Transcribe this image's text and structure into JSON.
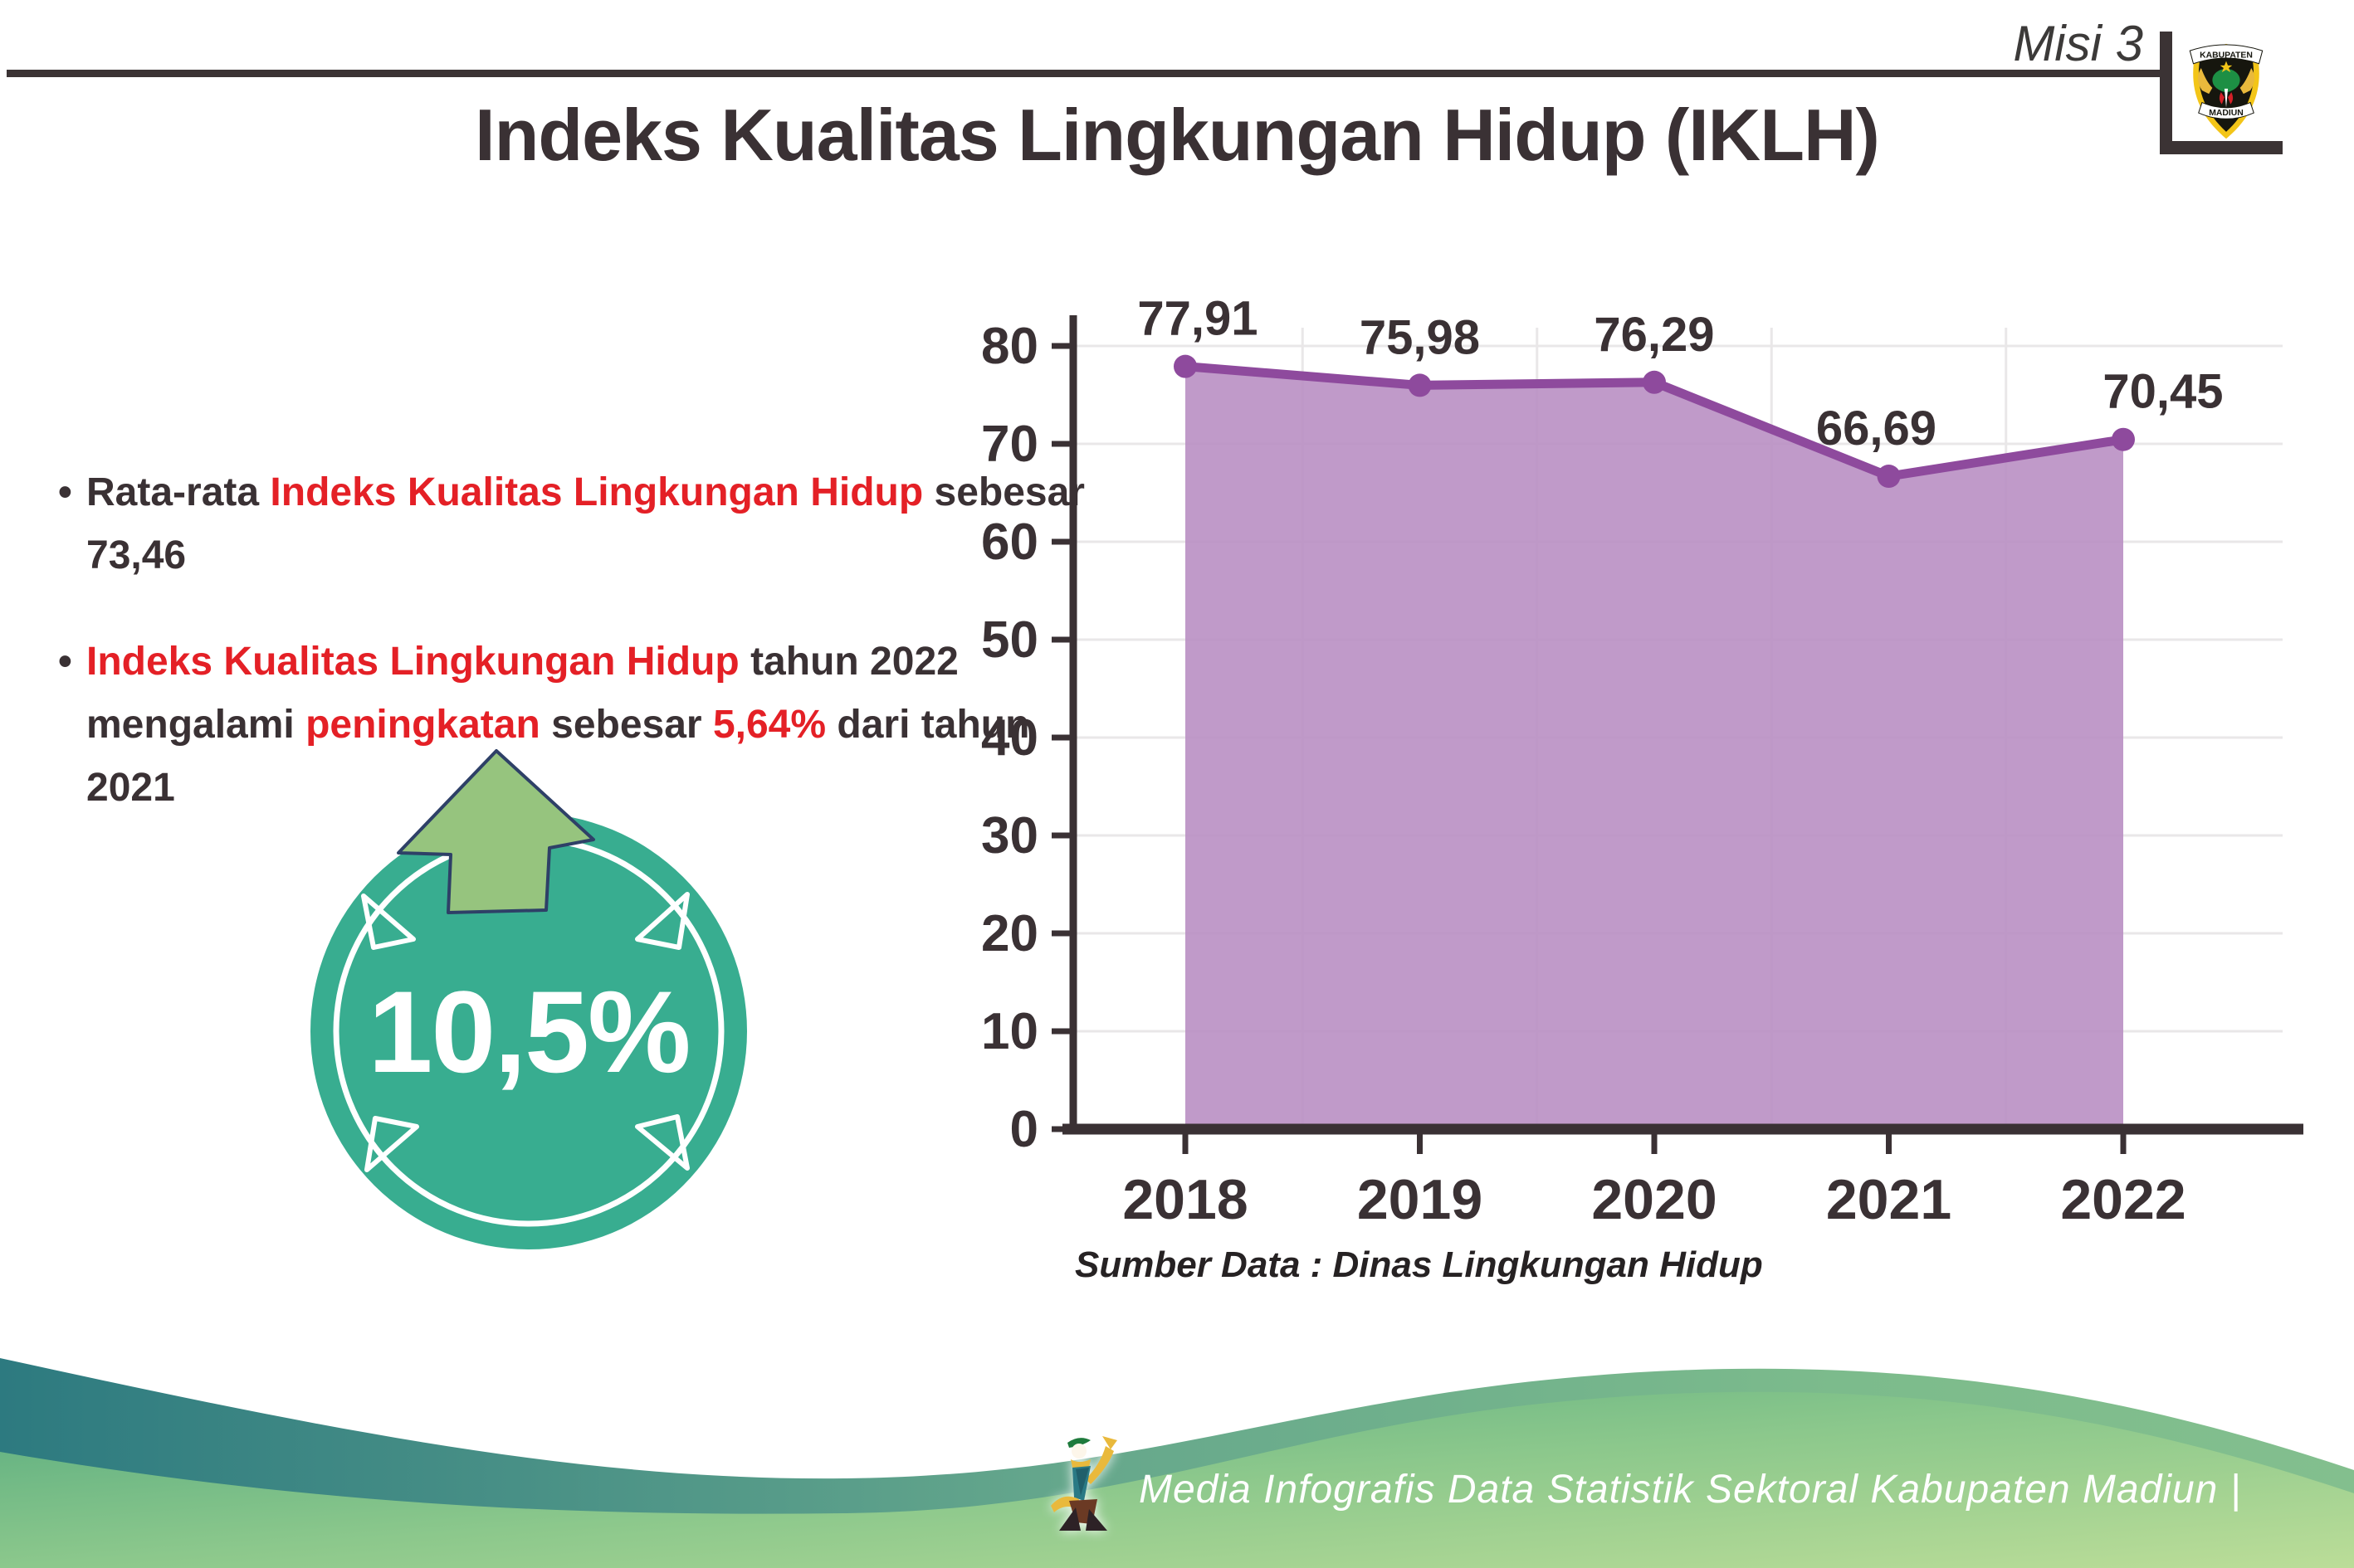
{
  "page": {
    "misi": "Misi 3",
    "title": "Indeks Kualitas Lingkungan Hidup (IKLH)"
  },
  "logo": {
    "region_top": "KABUPATEN",
    "region_bottom": "MADIUN"
  },
  "bullet_char": "•",
  "bullets": [
    {
      "segments": [
        {
          "t": "Rata-rata ",
          "c": "dark"
        },
        {
          "t": "Indeks Kualitas Lingkungan Hidup",
          "c": "red"
        },
        {
          "t": " sebesar 73,46",
          "c": "dark"
        }
      ]
    },
    {
      "segments": [
        {
          "t": "Indeks Kualitas Lingkungan Hidup",
          "c": "red"
        },
        {
          "t": " tahun 2022 mengalami ",
          "c": "dark"
        },
        {
          "t": "peningkatan",
          "c": "red"
        },
        {
          "t": " sebesar ",
          "c": "dark"
        },
        {
          "t": "5,64%",
          "c": "red"
        },
        {
          "t": " dari tahun 2021",
          "c": "dark"
        }
      ]
    }
  ],
  "badge": {
    "value": "10,5%"
  },
  "chart_data": {
    "type": "area",
    "x": [
      "2018",
      "2019",
      "2020",
      "2021",
      "2022"
    ],
    "series": [
      {
        "name": "IKLH",
        "values": [
          77.91,
          75.98,
          76.29,
          66.69,
          70.45
        ]
      }
    ],
    "point_labels": [
      "77,91",
      "75,98",
      "76,29",
      "66,69",
      "70,45"
    ],
    "ylim": [
      0,
      80
    ],
    "yticks": [
      0,
      10,
      20,
      30,
      40,
      50,
      60,
      70,
      80
    ],
    "grid": true,
    "legend": false,
    "title": "",
    "xlabel": "",
    "ylabel": "",
    "source": "Sumber Data : Dinas Lingkungan Hidup",
    "area_color": "#b98fc3",
    "line_color": "#8e4a9d",
    "axis_color": "#3a3134",
    "grid_color": "#e9e7e8",
    "label_color": "#3a3134"
  },
  "footer": {
    "caption": "Media Infografis Data Statistik Sektoral Kabupaten Madiun |"
  },
  "colors": {
    "red": "#e42026",
    "dark": "#3a3134",
    "teal_badge": "#38ad90",
    "arrow_green": "#96c47e",
    "arrow_outline": "#2e4067"
  }
}
